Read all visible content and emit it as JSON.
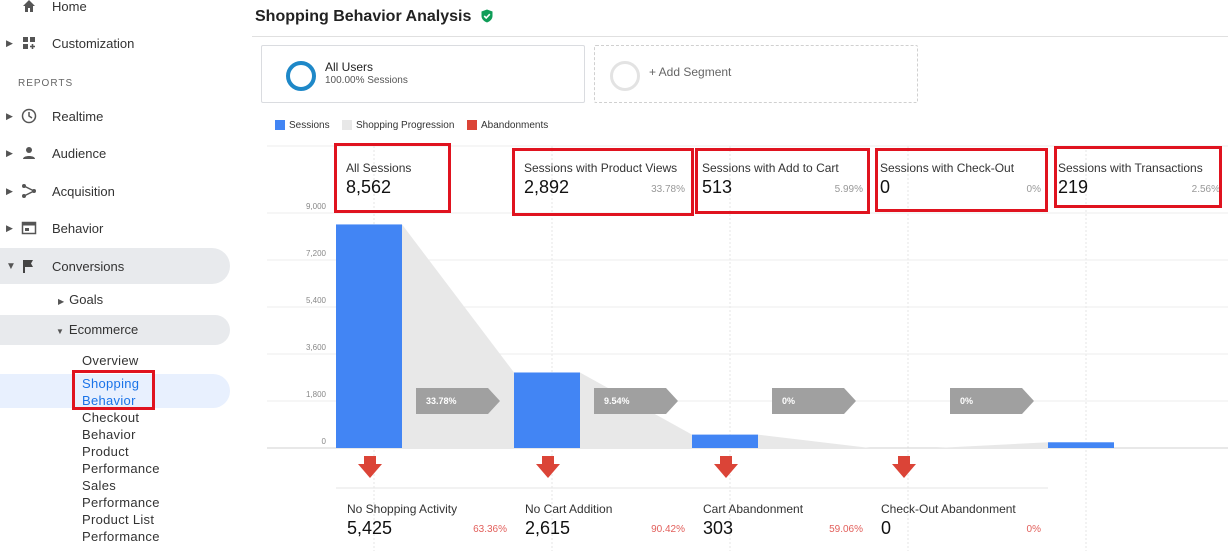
{
  "sidebar": {
    "items": [
      {
        "label": "Home",
        "icon": "home-icon"
      },
      {
        "label": "Customization",
        "icon": "dashboard-icon"
      },
      {
        "label": "Realtime",
        "icon": "clock-icon"
      },
      {
        "label": "Audience",
        "icon": "person-icon"
      },
      {
        "label": "Acquisition",
        "icon": "acquisition-icon"
      },
      {
        "label": "Behavior",
        "icon": "behavior-icon"
      },
      {
        "label": "Conversions",
        "icon": "flag-icon"
      }
    ],
    "reports_header": "REPORTS",
    "goals": "Goals",
    "ecommerce": "Ecommerce",
    "ecommerce_items": [
      "Overview",
      "Shopping Behavior",
      "Checkout Behavior",
      "Product Performance",
      "Sales Performance",
      "Product List Performance"
    ]
  },
  "header": {
    "title": "Shopping Behavior Analysis"
  },
  "segments": {
    "all_users": "All Users",
    "all_users_sub": "100.00% Sessions",
    "add_segment": "+ Add Segment"
  },
  "legend": [
    "Sessions",
    "Shopping Progression",
    "Abandonments"
  ],
  "colors": {
    "sessions": "#4285f4",
    "progression": "#e8e8e8",
    "abandonments": "#db4437",
    "highlight": "#e0131f",
    "verified": "#0f9d58"
  },
  "chart_data": {
    "type": "bar",
    "categories": [
      "All Sessions",
      "Sessions with Product Views",
      "Sessions with Add to Cart",
      "Sessions with Check-Out",
      "Sessions with Transactions"
    ],
    "values": [
      8562,
      2892,
      513,
      0,
      219
    ],
    "stage_values_text": [
      "8,562",
      "2,892",
      "513",
      "0",
      "219"
    ],
    "stage_pcts": [
      "",
      "33.78%",
      "5.99%",
      "0%",
      "2.56%"
    ],
    "progression_pcts": [
      "33.78%",
      "9.54%",
      "0%",
      "0%"
    ],
    "ylim": [
      0,
      9000
    ],
    "yticks": [
      "9,000",
      "7,200",
      "5,400",
      "3,600",
      "1,800",
      "0"
    ],
    "abandonments": [
      {
        "label": "No Shopping Activity",
        "value": "5,425",
        "pct": "63.36%"
      },
      {
        "label": "No Cart Addition",
        "value": "2,615",
        "pct": "90.42%"
      },
      {
        "label": "Cart Abandonment",
        "value": "303",
        "pct": "59.06%"
      },
      {
        "label": "Check-Out Abandonment",
        "value": "0",
        "pct": "0%"
      }
    ]
  }
}
